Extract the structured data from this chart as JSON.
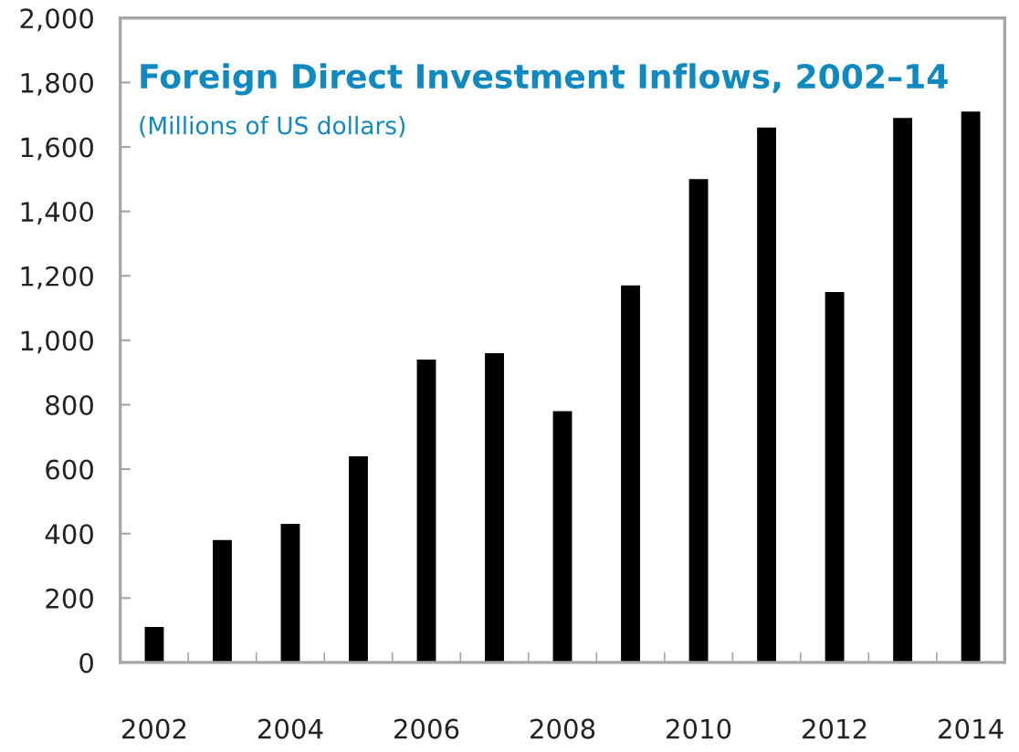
{
  "chart_data": {
    "type": "bar",
    "title": "Foreign Direct Investment Inflows, 2002–14",
    "subtitle": "(Millions of US dollars)",
    "categories": [
      "2002",
      null,
      "2004",
      null,
      "2006",
      null,
      "2008",
      null,
      "2010",
      null,
      "2012",
      null,
      "2014"
    ],
    "values": [
      110,
      380,
      430,
      640,
      940,
      960,
      780,
      1170,
      1500,
      1660,
      1150,
      1690,
      1710
    ],
    "color": "#000000",
    "ylim": [
      0,
      2000
    ],
    "yticks": [
      0,
      200,
      400,
      600,
      800,
      {
        "value": 1000,
        "label": "1,000"
      },
      {
        "value": 1200,
        "label": "1,200"
      },
      {
        "value": 1400,
        "label": "1,400"
      },
      {
        "value": 1600,
        "label": "1,600"
      },
      {
        "value": 1800,
        "label": "1,800"
      },
      {
        "value": 2000,
        "label": "2,000"
      }
    ]
  }
}
